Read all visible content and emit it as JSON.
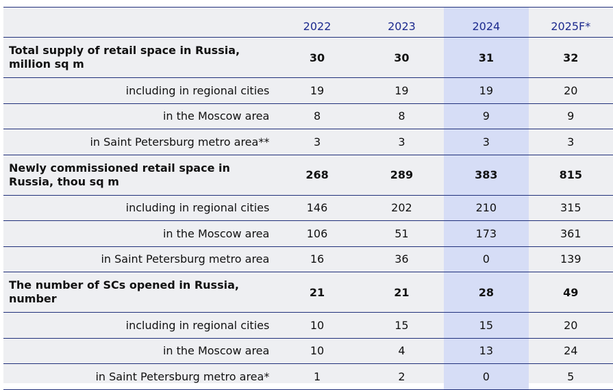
{
  "table": {
    "columns": [
      "2022",
      "2023",
      "2024",
      "2025F*"
    ],
    "sections": [
      {
        "title": "Total supply of retail space in Russia, million sq m",
        "values": [
          30,
          30,
          31,
          32
        ],
        "rows": [
          {
            "label": "including in regional cities",
            "values": [
              19,
              19,
              19,
              20
            ]
          },
          {
            "label": "in the Moscow area",
            "values": [
              8,
              8,
              9,
              9
            ]
          },
          {
            "label": "in Saint Petersburg metro area**",
            "values": [
              3,
              3,
              3,
              3
            ]
          }
        ]
      },
      {
        "title": "Newly commissioned retail space in Russia, thou sq m",
        "values": [
          268,
          289,
          383,
          815
        ],
        "rows": [
          {
            "label": "including in regional cities",
            "values": [
              146,
              202,
              210,
              315
            ]
          },
          {
            "label": "in the Moscow area",
            "values": [
              106,
              51,
              173,
              361
            ]
          },
          {
            "label": "in Saint Petersburg metro area",
            "values": [
              16,
              36,
              0,
              139
            ]
          }
        ]
      },
      {
        "title": "The number of SCs opened in Russia, number",
        "values": [
          21,
          21,
          28,
          49
        ],
        "rows": [
          {
            "label": "including in regional cities",
            "values": [
              10,
              15,
              15,
              20
            ]
          },
          {
            "label": "in the Moscow area",
            "values": [
              10,
              4,
              13,
              24
            ]
          },
          {
            "label": "in Saint Petersburg metro area*",
            "values": [
              1,
              2,
              0,
              5
            ]
          }
        ]
      }
    ]
  }
}
